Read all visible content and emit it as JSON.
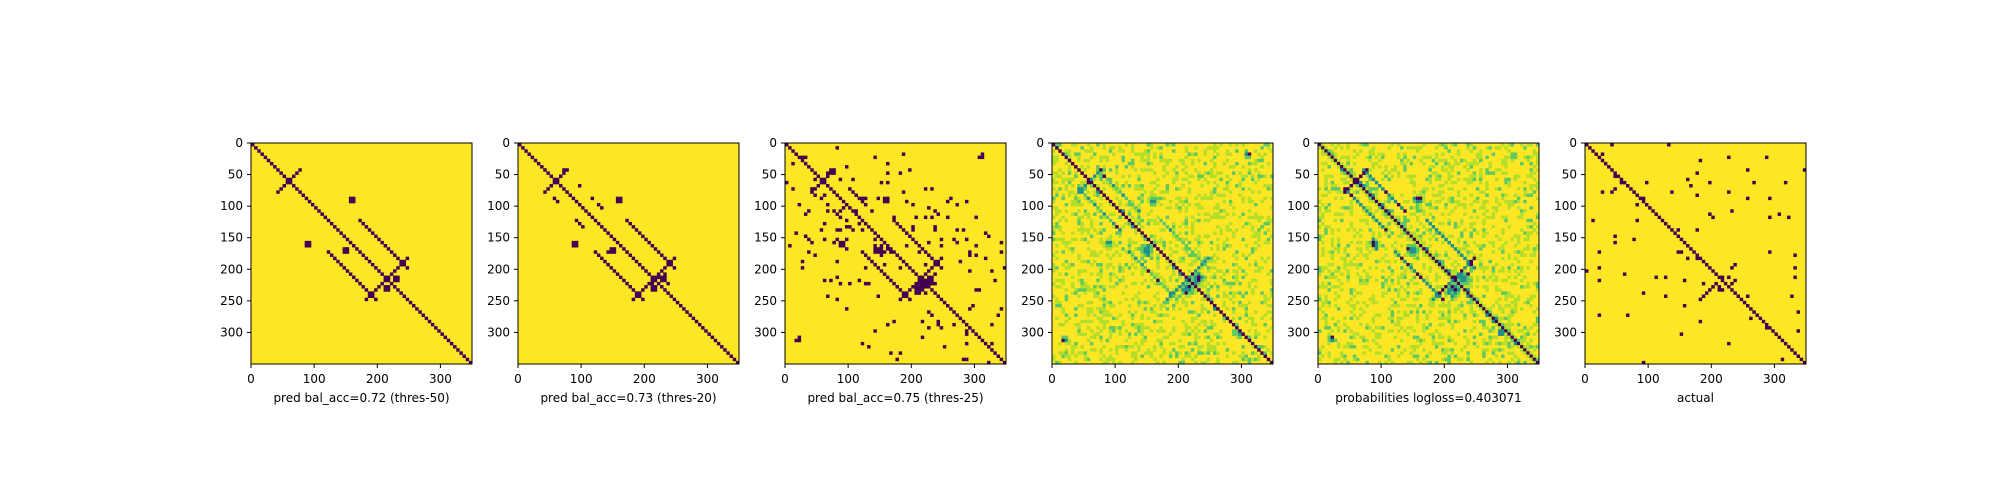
{
  "figure": {
    "background": "#ffffff"
  },
  "colors": {
    "background_value": "#fde725",
    "contact_value": "#440154",
    "mid_green": "#21918c",
    "light_green": "#5ec962",
    "pale_green": "#b5de2b"
  },
  "chart_data": [
    {
      "type": "heatmap",
      "title": "",
      "xlabel": "pred bal_acc=0.72 (thres-50)",
      "ylabel": "",
      "xticks": [
        0,
        100,
        200,
        300
      ],
      "yticks": [
        0,
        50,
        100,
        150,
        200,
        250,
        300
      ],
      "xlim": [
        0,
        350
      ],
      "ylim": [
        350,
        0
      ],
      "colormap": "viridis",
      "style": "binary",
      "noise_level": 0.25
    },
    {
      "type": "heatmap",
      "title": "",
      "xlabel": "pred bal_acc=0.73 (thres-20)",
      "ylabel": "",
      "xticks": [
        0,
        100,
        200,
        300
      ],
      "yticks": [
        0,
        50,
        100,
        150,
        200,
        250,
        300
      ],
      "xlim": [
        0,
        350
      ],
      "ylim": [
        350,
        0
      ],
      "colormap": "viridis",
      "style": "binary",
      "noise_level": 0.45
    },
    {
      "type": "heatmap",
      "title": "",
      "xlabel": "pred bal_acc=0.75 (thres-25)",
      "ylabel": "",
      "xticks": [
        0,
        100,
        200,
        300
      ],
      "yticks": [
        0,
        50,
        100,
        150,
        200,
        250,
        300
      ],
      "xlim": [
        0,
        350
      ],
      "ylim": [
        350,
        0
      ],
      "colormap": "viridis",
      "style": "binary",
      "noise_level": 1.0
    },
    {
      "type": "heatmap",
      "title": "",
      "xlabel": "",
      "ylabel": "",
      "xticks": [
        0,
        100,
        200,
        300
      ],
      "yticks": [
        0,
        50,
        100,
        150,
        200,
        250,
        300
      ],
      "xlim": [
        0,
        350
      ],
      "ylim": [
        350,
        0
      ],
      "colormap": "viridis",
      "style": "continuous",
      "noise_level": 1.0
    },
    {
      "type": "heatmap",
      "title": "",
      "xlabel": "probabilities logloss=0.403071",
      "ylabel": "",
      "xticks": [
        0,
        100,
        200,
        300
      ],
      "yticks": [
        0,
        50,
        100,
        150,
        200,
        250,
        300
      ],
      "xlim": [
        0,
        350
      ],
      "ylim": [
        350,
        0
      ],
      "colormap": "viridis",
      "style": "continuous_strong",
      "noise_level": 1.0
    },
    {
      "type": "heatmap",
      "title": "",
      "xlabel": "actual",
      "ylabel": "",
      "xticks": [
        0,
        100,
        200,
        300
      ],
      "yticks": [
        0,
        50,
        100,
        150,
        200,
        250,
        300
      ],
      "xlim": [
        0,
        350
      ],
      "ylim": [
        350,
        0
      ],
      "colormap": "viridis",
      "style": "actual",
      "noise_level": 0.5
    }
  ]
}
